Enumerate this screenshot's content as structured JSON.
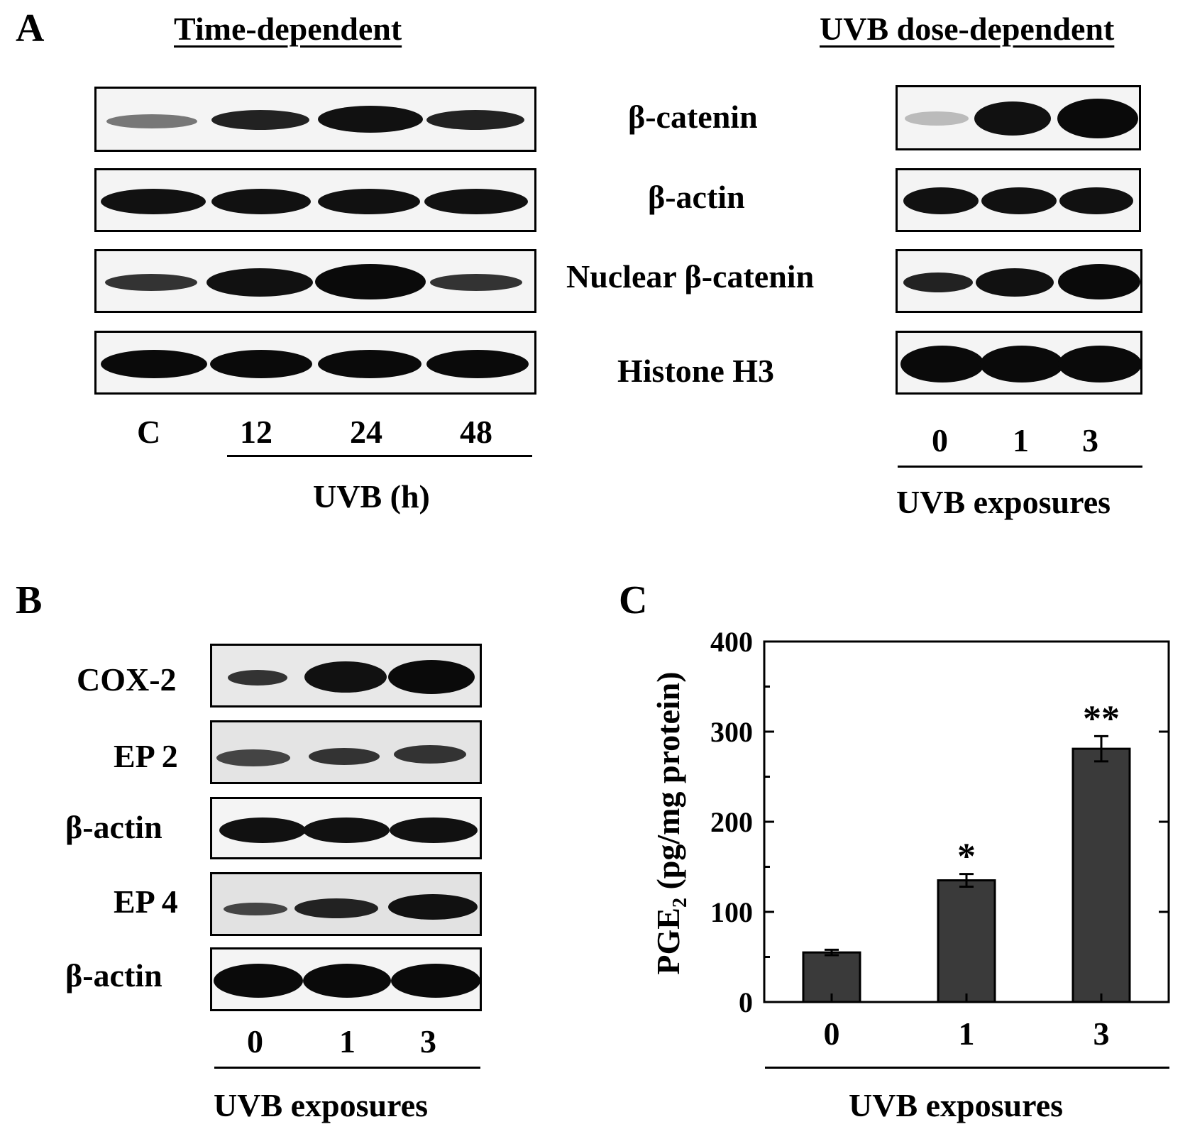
{
  "panel_labels": {
    "a": "A",
    "b": "B",
    "c": "C"
  },
  "panel_a": {
    "left_heading": "Time-dependent",
    "right_heading": "UVB dose-dependent",
    "row_labels": [
      "β-catenin",
      "β-actin",
      "Nuclear β-catenin",
      "Histone H3"
    ],
    "time_lanes": [
      "C",
      "12",
      "24",
      "48"
    ],
    "time_axis_label": "UVB (h)",
    "dose_lanes": [
      "0",
      "1",
      "3"
    ],
    "dose_axis_label": "UVB exposures"
  },
  "panel_b": {
    "row_labels": [
      "COX-2",
      "EP 2",
      "β-actin",
      "EP 4",
      "β-actin"
    ],
    "lanes": [
      "0",
      "1",
      "3"
    ],
    "axis_label": "UVB exposures"
  },
  "chart_data": {
    "type": "bar",
    "categories": [
      "0",
      "1",
      "3"
    ],
    "values": [
      55,
      135,
      281
    ],
    "errors": [
      3,
      7,
      14
    ],
    "significance": [
      "",
      "*",
      "**"
    ],
    "ylabel": "PGE",
    "ylabel_sub": "2",
    "ylabel_rest": " (pg/mg protein)",
    "xlabel": "UVB exposures",
    "ylim": [
      0,
      400
    ],
    "yticks": [
      0,
      100,
      200,
      300,
      400
    ],
    "bar_color": "#3a3a3a"
  }
}
